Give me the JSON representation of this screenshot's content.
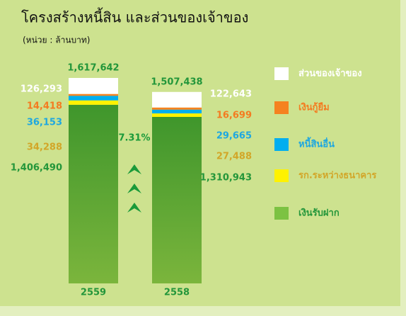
{
  "chart_data": {
    "type": "stacked_bar",
    "title": "โครงสร้างหนี้สิน และส่วนของเจ้าของ",
    "subtitle": "(หน่วย : ล้านบาท)",
    "categories": [
      "2559",
      "2558"
    ],
    "series": [
      {
        "name": "เงินรับฝาก",
        "color": "#7cc242",
        "label_color": "#23963a",
        "values": [
          1406490,
          1310943
        ],
        "value_labels": [
          "1,406,490",
          "1,310,943"
        ]
      },
      {
        "name": "รก.ระหว่างธนาคาร",
        "color": "#fff200",
        "label_color": "#d2a628",
        "values": [
          34288,
          27488
        ],
        "value_labels": [
          "34,288",
          "27,488"
        ]
      },
      {
        "name": "หนี้สินอื่น",
        "color": "#00aeef",
        "label_color": "#1ea7e0",
        "values": [
          36153,
          29665
        ],
        "value_labels": [
          "36,153",
          "29,665"
        ]
      },
      {
        "name": "เงินกู้ยืม",
        "color": "#f58220",
        "label_color": "#f47b20",
        "values": [
          14418,
          16699
        ],
        "value_labels": [
          "14,418",
          "16,699"
        ]
      },
      {
        "name": "ส่วนของเจ้าของ",
        "color": "#ffffff",
        "label_color": "#ffffff",
        "values": [
          126293,
          122643
        ],
        "value_labels": [
          "126,293",
          "122,643"
        ]
      }
    ],
    "totals": [
      1617642,
      1507438
    ],
    "total_labels": [
      "1,617,642",
      "1,507,438"
    ],
    "annotation": "7.31%"
  }
}
